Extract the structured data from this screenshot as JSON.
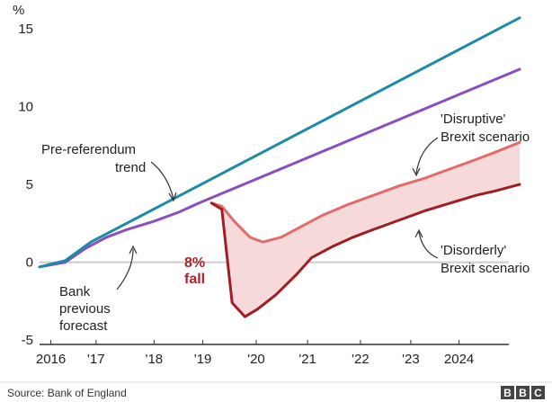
{
  "chart_data": {
    "type": "line",
    "unit_label": "%",
    "ylim": [
      -5.8,
      16.5
    ],
    "xlim": [
      2015.5,
      2024.85
    ],
    "y_ticks": [
      {
        "value": 15,
        "label": "15"
      },
      {
        "value": 10,
        "label": "10"
      },
      {
        "value": 5,
        "label": "5"
      },
      {
        "value": 0,
        "label": "0"
      },
      {
        "value": -5,
        "label": "-5"
      }
    ],
    "x_ticks": [
      {
        "value": 2015.72,
        "label": "2016"
      },
      {
        "value": 2016.6,
        "label": "'17"
      },
      {
        "value": 2017.73,
        "label": "'18"
      },
      {
        "value": 2018.68,
        "label": "'19"
      },
      {
        "value": 2019.72,
        "label": "'20"
      },
      {
        "value": 2020.72,
        "label": "'21"
      },
      {
        "value": 2021.75,
        "label": "'22"
      },
      {
        "value": 2022.73,
        "label": "'23"
      },
      {
        "value": 2023.67,
        "label": "2024"
      }
    ],
    "series": [
      {
        "name": "Pre-referendum trend",
        "color": "#1d8ba6",
        "x": [
          2015.5,
          2016.0,
          2016.5,
          2024.85
        ],
        "y": [
          -0.3,
          0.1,
          1.3,
          15.7
        ]
      },
      {
        "name": "Bank previous forecast",
        "color": "#8a4fbd",
        "x": [
          2015.5,
          2016.0,
          2016.4,
          2016.8,
          2017.2,
          2017.7,
          2018.2,
          2018.6,
          2024.85
        ],
        "y": [
          -0.3,
          0.0,
          0.9,
          1.6,
          2.1,
          2.6,
          3.2,
          3.8,
          12.4
        ]
      },
      {
        "name": "'Disruptive' Brexit scenario",
        "color": "#e26b6b",
        "x": [
          2018.85,
          2019.05,
          2019.3,
          2019.6,
          2019.85,
          2020.2,
          2020.6,
          2021.0,
          2021.5,
          2022.0,
          2022.5,
          2023.0,
          2023.5,
          2024.0,
          2024.4,
          2024.85
        ],
        "y": [
          3.8,
          3.6,
          2.6,
          1.6,
          1.3,
          1.6,
          2.3,
          3.0,
          3.7,
          4.3,
          4.9,
          5.4,
          6.0,
          6.6,
          7.1,
          7.7
        ]
      },
      {
        "name": "'Disorderly' Brexit scenario",
        "color": "#a11d26",
        "x": [
          2018.85,
          2019.05,
          2019.25,
          2019.5,
          2019.75,
          2020.1,
          2020.5,
          2020.8,
          2021.2,
          2021.6,
          2022.0,
          2022.5,
          2023.0,
          2023.5,
          2024.0,
          2024.4,
          2024.85
        ],
        "y": [
          3.8,
          3.4,
          -2.6,
          -3.5,
          -3.0,
          -2.1,
          -0.8,
          0.3,
          1.0,
          1.6,
          2.1,
          2.7,
          3.3,
          3.8,
          4.3,
          4.6,
          5.0
        ]
      }
    ],
    "annotations": {
      "pre_referendum": [
        "Pre-referendum",
        "trend"
      ],
      "bank_forecast": [
        "Bank",
        "previous",
        "forecast"
      ],
      "disruptive": [
        "'Disruptive'",
        "Brexit scenario"
      ],
      "disorderly": [
        "'Disorderly'",
        "Brexit scenario"
      ],
      "fall": [
        "8%",
        "fall"
      ]
    },
    "source": "Source: Bank of England",
    "logo": [
      "B",
      "B",
      "C"
    ]
  },
  "colors": {
    "trend": "#1d8ba6",
    "forecast": "#8a4fbd",
    "disruptive": "#e26b6b",
    "disorderly": "#a11d26",
    "shade": "#f6d9d9",
    "axis": "#333333",
    "zero_line": "#cccccc"
  }
}
